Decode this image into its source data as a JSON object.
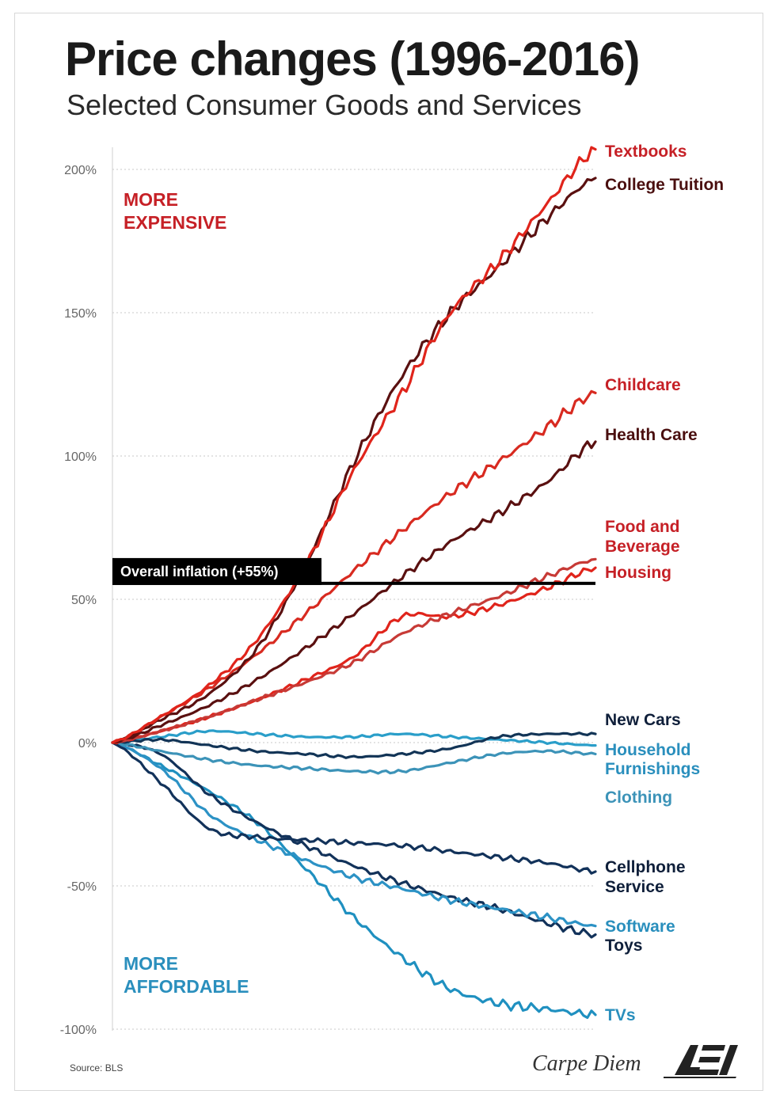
{
  "title": "Price changes (1996-2016)",
  "subtitle": "Selected Consumer Goods and Services",
  "annotations": {
    "more_expensive_1": "MORE",
    "more_expensive_2": "EXPENSIVE",
    "more_affordable_1": "MORE",
    "more_affordable_2": "AFFORDABLE",
    "inflation_label": "Overall inflation (+55%)"
  },
  "source": "Source: BLS",
  "credit": "Carpe Diem",
  "logo_text": "AEI",
  "colors": {
    "textbooks": "#e0241b",
    "college_tuition": "#5a1010",
    "childcare": "#d82a20",
    "health_care": "#5a1010",
    "food_bev": "#c73a36",
    "housing": "#e0241b",
    "new_cars": "#123456",
    "household": "#2a9ec9",
    "clothing": "#3c93b8",
    "cellphone": "#12325a",
    "software": "#2c92c5",
    "toys": "#12325a",
    "tvs": "#1f90c0",
    "expensive_text": "#c62026",
    "affordable_text": "#2a8fbd",
    "inflation_line": "#000000"
  },
  "chart_data": {
    "type": "line",
    "title": "Price changes (1996-2016)",
    "subtitle": "Selected Consumer Goods and Services",
    "x": [
      1996,
      1998,
      2000,
      2002,
      2004,
      2006,
      2008,
      2010,
      2012,
      2014,
      2016
    ],
    "xlim": [
      1996,
      2016
    ],
    "ylim": [
      -100,
      210
    ],
    "yticks": [
      200,
      150,
      100,
      50,
      0,
      -50,
      -100
    ],
    "ytick_labels": [
      "200%",
      "150%",
      "100%",
      "50%",
      "0%",
      "-50%",
      "-100%"
    ],
    "grid": true,
    "reference_line": {
      "label": "Overall inflation (+55%)",
      "y": 55
    },
    "series": [
      {
        "name": "Textbooks",
        "key": "textbooks",
        "label_lines": [
          "Textbooks"
        ],
        "values": [
          0,
          9,
          20,
          36,
          62,
          95,
          122,
          150,
          168,
          188,
          207
        ]
      },
      {
        "name": "College Tuition",
        "key": "college_tuition",
        "label_lines": [
          "College Tuition"
        ],
        "values": [
          0,
          8,
          17,
          33,
          62,
          98,
          128,
          150,
          166,
          183,
          197
        ]
      },
      {
        "name": "Childcare",
        "key": "childcare",
        "label_lines": [
          "Childcare"
        ],
        "values": [
          0,
          9,
          19,
          31,
          45,
          60,
          74,
          87,
          98,
          110,
          122
        ]
      },
      {
        "name": "Health Care",
        "key": "health_care",
        "label_lines": [
          "Health Care"
        ],
        "values": [
          0,
          6,
          13,
          22,
          33,
          45,
          58,
          70,
          80,
          91,
          105
        ]
      },
      {
        "name": "Food and Beverage",
        "key": "food_bev",
        "label_lines": [
          "Food and",
          "Beverage"
        ],
        "values": [
          0,
          4,
          9,
          15,
          21,
          28,
          38,
          45,
          51,
          58,
          64
        ]
      },
      {
        "name": "Housing",
        "key": "housing",
        "label_lines": [
          "Housing"
        ],
        "values": [
          0,
          4,
          9,
          15,
          22,
          30,
          44,
          44,
          48,
          54,
          61
        ]
      },
      {
        "name": "New Cars",
        "key": "new_cars",
        "label_lines": [
          "New Cars"
        ],
        "values": [
          0,
          1,
          -1,
          -3,
          -4,
          -5,
          -4,
          -2,
          2,
          3,
          3
        ]
      },
      {
        "name": "Household Furnishings",
        "key": "household",
        "label_lines": [
          "Household",
          "Furnishings"
        ],
        "values": [
          0,
          2,
          4,
          3,
          2,
          2,
          3,
          2,
          1,
          0,
          -1
        ]
      },
      {
        "name": "Clothing",
        "key": "clothing",
        "label_lines": [
          "Clothing"
        ],
        "values": [
          0,
          -3,
          -6,
          -8,
          -9,
          -10,
          -10,
          -7,
          -4,
          -3,
          -4
        ]
      },
      {
        "name": "Cellphone Service",
        "key": "cellphone",
        "label_lines": [
          "Cellphone",
          "Service"
        ],
        "values": [
          0,
          -14,
          -30,
          -33,
          -34,
          -35,
          -36,
          -38,
          -40,
          -42,
          -45
        ]
      },
      {
        "name": "Software",
        "key": "software",
        "label_lines": [
          "Software"
        ],
        "values": [
          0,
          -9,
          -25,
          -34,
          -41,
          -47,
          -51,
          -55,
          -58,
          -61,
          -64
        ]
      },
      {
        "name": "Toys",
        "key": "toys",
        "label_lines": [
          "Toys"
        ],
        "values": [
          0,
          -4,
          -18,
          -28,
          -36,
          -43,
          -49,
          -54,
          -58,
          -63,
          -67
        ]
      },
      {
        "name": "TVs",
        "key": "tvs",
        "label_lines": [
          "TVs"
        ],
        "values": [
          0,
          -8,
          -17,
          -28,
          -44,
          -61,
          -75,
          -86,
          -91,
          -93,
          -95
        ]
      }
    ]
  }
}
